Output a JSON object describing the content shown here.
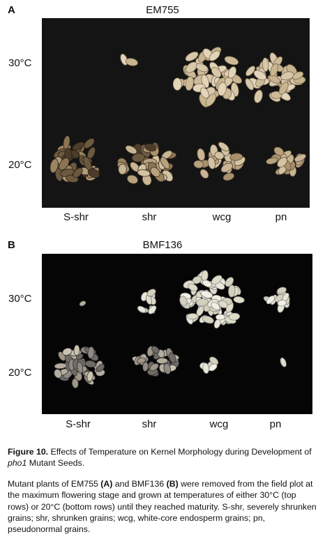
{
  "panelA": {
    "letter": "A",
    "title": "EM755",
    "temps": [
      "30°C",
      "20°C"
    ],
    "categories": [
      "S-shr",
      "shr",
      "wcg",
      "pn"
    ]
  },
  "panelB": {
    "letter": "B",
    "title": "BMF136",
    "temps": [
      "30°C",
      "20°C"
    ],
    "categories": [
      "S-shr",
      "shr",
      "wcg",
      "pn"
    ]
  },
  "caption": {
    "label": "Figure 10.",
    "title_part1": " Effects of Temperature on Kernel Morphology during Development of ",
    "title_italic": "pho1",
    "title_part2": " Mutant Seeds.",
    "body_1": "Mutant plants of EM755 ",
    "body_A": "(A)",
    "body_2": " and BMF136 ",
    "body_B": "(B)",
    "body_3": " were removed from the field plot at the maximum flowering stage and grown at temperatures of either 30°C (top rows) or 20°C (bottom rows) until they reached maturity. S-shr, severely shrunken grains; shr, shrunken grains; wcg, white-core endosperm grains; pn, pseudonormal grains."
  },
  "colors": {
    "photo_bg_A": "#151515",
    "photo_bg_B": "#050505",
    "grain_light": "#d9cbb0",
    "grain_dark": "#5a4a36",
    "grain_white": "#e8e6d8"
  }
}
